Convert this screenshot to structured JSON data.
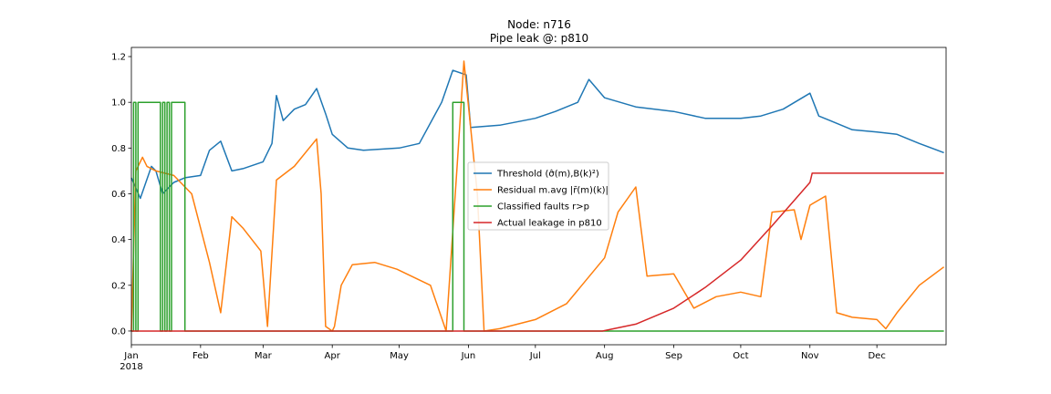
{
  "chart_data": {
    "type": "line",
    "title": "Node: n716",
    "subtitle": "Pipe leak @: p810",
    "xlabel": "",
    "ylabel": "",
    "x_range": [
      "2018-01-01",
      "2018-12-31"
    ],
    "ylim": [
      -0.06,
      1.24
    ],
    "y_ticks": [
      0.0,
      0.2,
      0.4,
      0.6,
      0.8,
      1.0,
      1.2
    ],
    "y_tick_labels": [
      "0.0",
      "0.2",
      "0.4",
      "0.6",
      "0.8",
      "1.0",
      "1.2"
    ],
    "x_ticks": [
      "2018-01-01",
      "2018-02-01",
      "2018-03-01",
      "2018-04-01",
      "2018-05-01",
      "2018-06-01",
      "2018-07-01",
      "2018-08-01",
      "2018-09-01",
      "2018-10-01",
      "2018-11-01",
      "2018-12-01"
    ],
    "x_tick_labels": [
      "Jan",
      "Feb",
      "Mar",
      "Apr",
      "May",
      "Jun",
      "Jul",
      "Aug",
      "Sep",
      "Oct",
      "Nov",
      "Dec"
    ],
    "x_year_label": "2018",
    "grid": false,
    "legend_position": "center",
    "series": [
      {
        "name": "Threshold (σ̂^(m),B(k)^2)",
        "legend_label": "Threshold (σ̂(m),B(k)²)",
        "color": "#1f77b4",
        "x": [
          "2018-01-01",
          "2018-01-05",
          "2018-01-10",
          "2018-01-12",
          "2018-01-15",
          "2018-01-20",
          "2018-01-25",
          "2018-02-01",
          "2018-02-05",
          "2018-02-10",
          "2018-02-15",
          "2018-02-20",
          "2018-03-01",
          "2018-03-05",
          "2018-03-07",
          "2018-03-10",
          "2018-03-15",
          "2018-03-20",
          "2018-03-25",
          "2018-03-29",
          "2018-04-01",
          "2018-04-08",
          "2018-04-15",
          "2018-05-01",
          "2018-05-10",
          "2018-05-20",
          "2018-05-25",
          "2018-05-31",
          "2018-06-02",
          "2018-06-15",
          "2018-07-01",
          "2018-07-10",
          "2018-07-20",
          "2018-07-25",
          "2018-08-01",
          "2018-08-15",
          "2018-09-01",
          "2018-09-15",
          "2018-10-01",
          "2018-10-10",
          "2018-10-20",
          "2018-11-01",
          "2018-11-05",
          "2018-11-10",
          "2018-11-20",
          "2018-12-01",
          "2018-12-10",
          "2018-12-20",
          "2018-12-31"
        ],
        "y": [
          0.67,
          0.58,
          0.72,
          0.7,
          0.6,
          0.65,
          0.67,
          0.68,
          0.79,
          0.83,
          0.7,
          0.71,
          0.74,
          0.82,
          1.03,
          0.92,
          0.97,
          0.99,
          1.06,
          0.95,
          0.86,
          0.8,
          0.79,
          0.8,
          0.82,
          1.0,
          1.14,
          1.12,
          0.89,
          0.9,
          0.93,
          0.96,
          1.0,
          1.1,
          1.02,
          0.98,
          0.96,
          0.93,
          0.93,
          0.94,
          0.97,
          1.04,
          0.94,
          0.92,
          0.88,
          0.87,
          0.86,
          0.82,
          0.78
        ]
      },
      {
        "name": "Residual m.avg |r̄^(m)(k)|",
        "legend_label": "Residual m.avg |r̄(m)(k)|",
        "color": "#ff7f0e",
        "x": [
          "2018-01-01",
          "2018-01-03",
          "2018-01-06",
          "2018-01-08",
          "2018-01-12",
          "2018-01-20",
          "2018-01-28",
          "2018-02-05",
          "2018-02-10",
          "2018-02-15",
          "2018-02-20",
          "2018-02-28",
          "2018-03-03",
          "2018-03-07",
          "2018-03-15",
          "2018-03-25",
          "2018-03-27",
          "2018-03-29",
          "2018-04-01",
          "2018-04-02",
          "2018-04-05",
          "2018-04-10",
          "2018-04-20",
          "2018-04-30",
          "2018-05-15",
          "2018-05-22",
          "2018-05-27",
          "2018-05-30",
          "2018-06-05",
          "2018-06-08",
          "2018-06-15",
          "2018-07-01",
          "2018-07-15",
          "2018-08-01",
          "2018-08-07",
          "2018-08-15",
          "2018-08-20",
          "2018-09-01",
          "2018-09-10",
          "2018-09-20",
          "2018-10-01",
          "2018-10-10",
          "2018-10-15",
          "2018-10-25",
          "2018-10-28",
          "2018-11-01",
          "2018-11-08",
          "2018-11-13",
          "2018-11-20",
          "2018-12-01",
          "2018-12-05",
          "2018-12-10",
          "2018-12-20",
          "2018-12-31"
        ],
        "y": [
          0.0,
          0.7,
          0.76,
          0.72,
          0.7,
          0.68,
          0.6,
          0.3,
          0.08,
          0.5,
          0.45,
          0.35,
          0.02,
          0.66,
          0.72,
          0.84,
          0.6,
          0.02,
          0.0,
          0.02,
          0.2,
          0.29,
          0.3,
          0.27,
          0.2,
          0.0,
          0.73,
          1.18,
          0.6,
          0.0,
          0.01,
          0.05,
          0.12,
          0.32,
          0.52,
          0.63,
          0.24,
          0.25,
          0.1,
          0.15,
          0.17,
          0.15,
          0.52,
          0.53,
          0.4,
          0.55,
          0.59,
          0.08,
          0.06,
          0.05,
          0.01,
          0.08,
          0.2,
          0.28
        ]
      },
      {
        "name": "Classified faults r>p",
        "legend_label": "Classified faults r>p",
        "color": "#2ca02c",
        "x": [
          "2018-01-01",
          "2018-01-02",
          "2018-01-02",
          "2018-01-03",
          "2018-01-03",
          "2018-01-04",
          "2018-01-04",
          "2018-01-05",
          "2018-01-05",
          "2018-01-14",
          "2018-01-14",
          "2018-01-15",
          "2018-01-15",
          "2018-01-16",
          "2018-01-16",
          "2018-01-17",
          "2018-01-17",
          "2018-01-18",
          "2018-01-18",
          "2018-01-19",
          "2018-01-19",
          "2018-01-20",
          "2018-01-20",
          "2018-01-25",
          "2018-01-25",
          "2018-05-25",
          "2018-05-25",
          "2018-05-30",
          "2018-05-30",
          "2018-12-31"
        ],
        "y": [
          0,
          0,
          1,
          1,
          0,
          0,
          1,
          1,
          1,
          1,
          0,
          0,
          1,
          1,
          0,
          0,
          1,
          1,
          0,
          0,
          1,
          1,
          1,
          1,
          0,
          0,
          1,
          1,
          0,
          0
        ]
      },
      {
        "name": "Actual leakage in p810",
        "legend_label": "Actual leakage in p810",
        "color": "#d62728",
        "x": [
          "2018-01-01",
          "2018-07-31",
          "2018-08-15",
          "2018-09-01",
          "2018-09-15",
          "2018-10-01",
          "2018-10-15",
          "2018-11-01",
          "2018-11-02",
          "2018-12-31"
        ],
        "y": [
          0.0,
          0.0,
          0.03,
          0.1,
          0.19,
          0.31,
          0.46,
          0.65,
          0.69,
          0.69
        ]
      }
    ]
  }
}
